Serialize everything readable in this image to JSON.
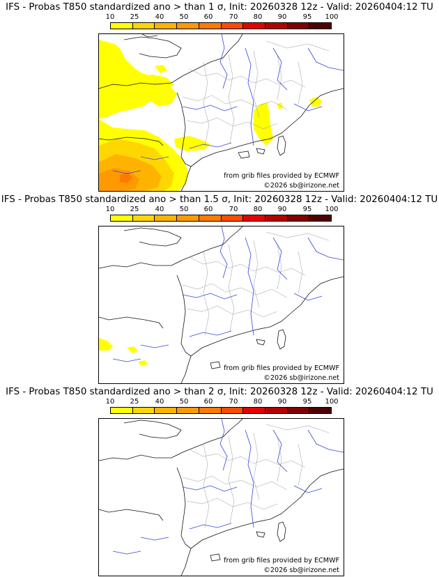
{
  "legend": {
    "labels": [
      "10",
      "25",
      "40",
      "50",
      "60",
      "70",
      "80",
      "90",
      "95",
      "100"
    ],
    "colors": [
      "#ffff00",
      "#ffd700",
      "#ffb300",
      "#ff9900",
      "#ff7a00",
      "#ff4a00",
      "#e60000",
      "#b40000",
      "#820000",
      "#500000"
    ]
  },
  "credits": {
    "source": "from grib files provided by ECMWF",
    "copyright": "©2026 sb@irizone.net"
  },
  "panels": [
    {
      "title": "IFS - Probas T850  standardized ano > than 1 σ, Init: 20260328 12z - Valid: 20260404:12 TU",
      "threshold": "1 σ"
    },
    {
      "title": "IFS - Probas T850  standardized ano > than 1.5 σ, Init: 20260328 12z - Valid: 20260404:12 TU",
      "threshold": "1.5 σ"
    },
    {
      "title": "IFS - Probas T850  standardized ano > than 2 σ, Init: 20260328 12z - Valid: 20260404:12 TU",
      "threshold": "2 σ"
    }
  ]
}
